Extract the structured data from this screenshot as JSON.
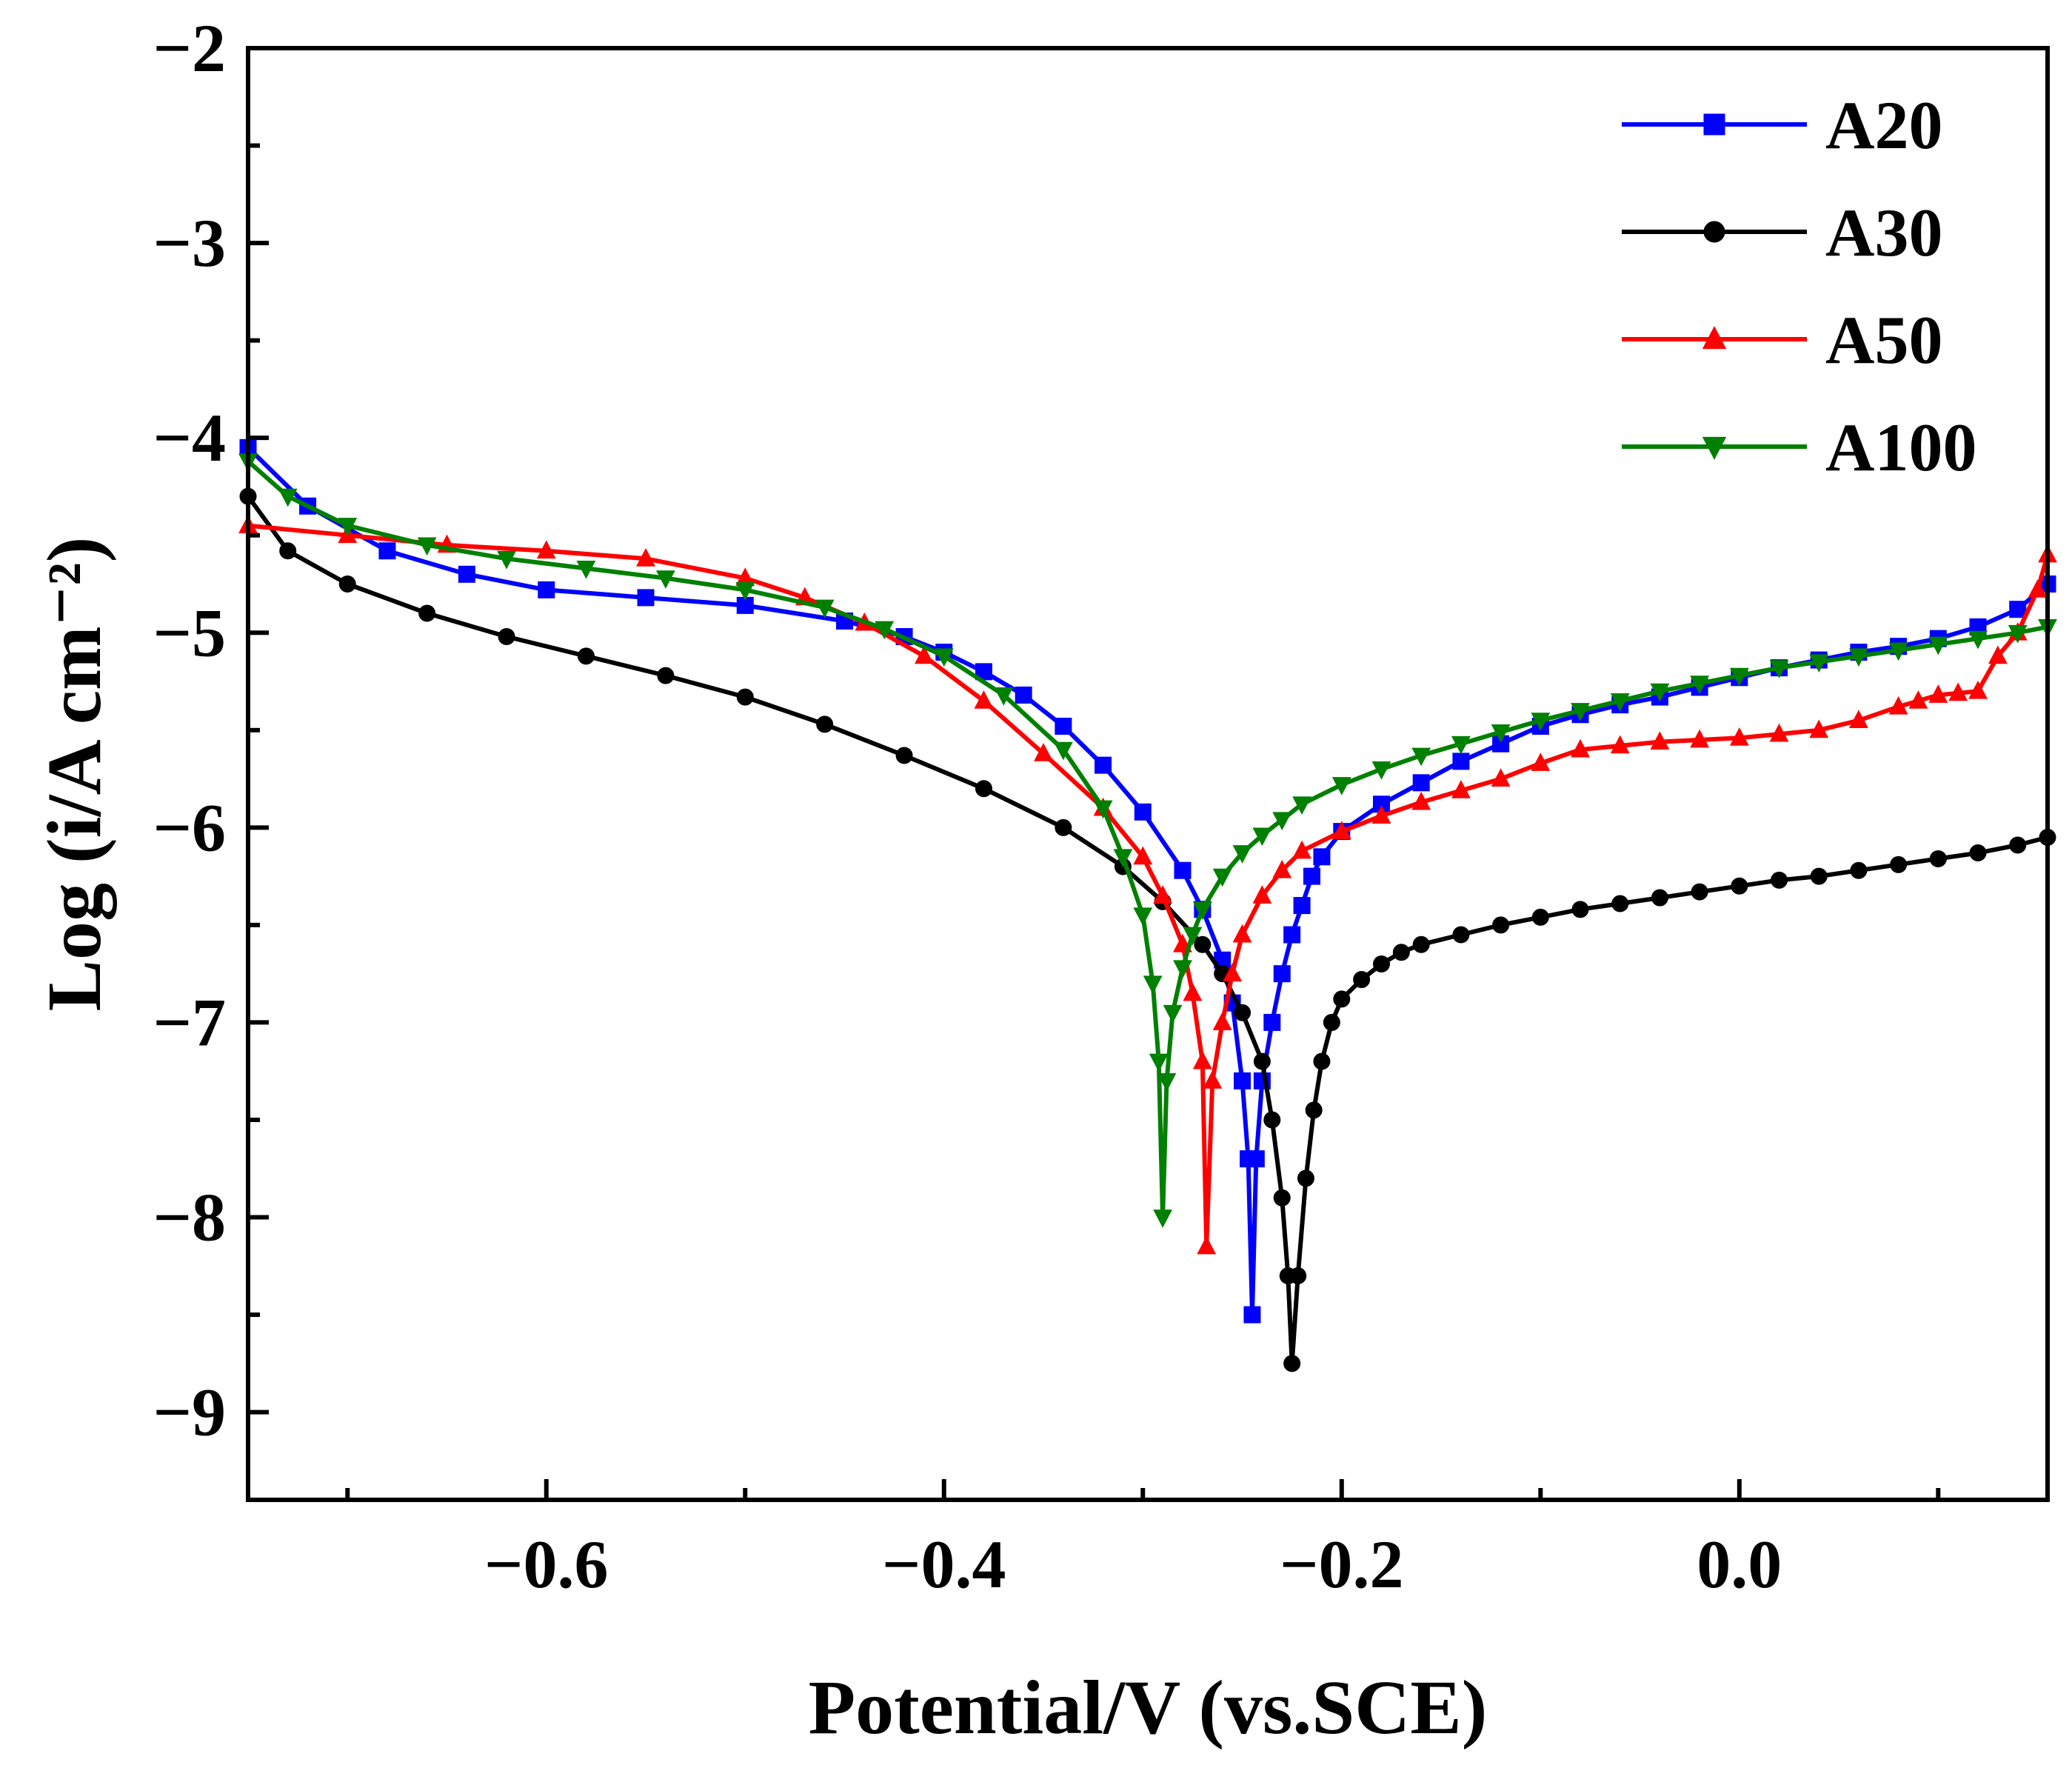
{
  "chart_data": {
    "type": "line",
    "title": "",
    "xlabel": "Potential/V (vs.SCE)",
    "ylabel": "Log (i/A cm⁻²)",
    "xlim": [
      -0.75,
      0.155
    ],
    "ylim": [
      -9.45,
      -2.0
    ],
    "x_ticks": [
      -0.6,
      -0.4,
      -0.2,
      0.0
    ],
    "x_tick_labels": [
      "−0.6",
      "−0.4",
      "−0.2",
      "0.0"
    ],
    "x_minor_ticks": [
      -0.7,
      -0.5,
      -0.3,
      -0.1,
      0.1
    ],
    "y_ticks": [
      -2,
      -3,
      -4,
      -5,
      -6,
      -7,
      -8,
      -9
    ],
    "y_tick_labels": [
      "−2",
      "−3",
      "−4",
      "−5",
      "−6",
      "−7",
      "−8",
      "−9"
    ],
    "y_minor_ticks": [
      -2.5,
      -3.5,
      -4.5,
      -5.5,
      -6.5,
      -7.5,
      -8.5
    ],
    "legend_position": "top-right",
    "grid": false,
    "series": [
      {
        "name": "A20",
        "color": "#0000ff",
        "marker": "square",
        "x": [
          -0.75,
          -0.72,
          -0.68,
          -0.64,
          -0.6,
          -0.55,
          -0.5,
          -0.45,
          -0.42,
          -0.4,
          -0.38,
          -0.36,
          -0.34,
          -0.32,
          -0.3,
          -0.28,
          -0.27,
          -0.26,
          -0.255,
          -0.25,
          -0.247,
          -0.245,
          -0.243,
          -0.24,
          -0.235,
          -0.23,
          -0.225,
          -0.22,
          -0.215,
          -0.21,
          -0.2,
          -0.18,
          -0.16,
          -0.14,
          -0.12,
          -0.1,
          -0.08,
          -0.06,
          -0.04,
          -0.02,
          0.0,
          0.02,
          0.04,
          0.06,
          0.08,
          0.1,
          0.12,
          0.14,
          0.155
        ],
        "y": [
          -4.05,
          -4.35,
          -4.58,
          -4.7,
          -4.78,
          -4.82,
          -4.86,
          -4.94,
          -5.02,
          -5.1,
          -5.2,
          -5.32,
          -5.48,
          -5.68,
          -5.92,
          -6.22,
          -6.42,
          -6.68,
          -6.9,
          -7.3,
          -7.7,
          -8.5,
          -7.7,
          -7.3,
          -7.0,
          -6.75,
          -6.55,
          -6.4,
          -6.25,
          -6.15,
          -6.02,
          -5.88,
          -5.77,
          -5.66,
          -5.57,
          -5.48,
          -5.42,
          -5.37,
          -5.33,
          -5.28,
          -5.23,
          -5.18,
          -5.14,
          -5.1,
          -5.07,
          -5.03,
          -4.97,
          -4.88,
          -4.75
        ]
      },
      {
        "name": "A30",
        "color": "#000000",
        "marker": "circle",
        "x": [
          -0.75,
          -0.73,
          -0.7,
          -0.66,
          -0.62,
          -0.58,
          -0.54,
          -0.5,
          -0.46,
          -0.42,
          -0.38,
          -0.34,
          -0.31,
          -0.29,
          -0.27,
          -0.26,
          -0.25,
          -0.24,
          -0.235,
          -0.23,
          -0.227,
          -0.225,
          -0.222,
          -0.218,
          -0.214,
          -0.21,
          -0.205,
          -0.2,
          -0.19,
          -0.18,
          -0.17,
          -0.16,
          -0.14,
          -0.12,
          -0.1,
          -0.08,
          -0.06,
          -0.04,
          -0.02,
          0.0,
          0.02,
          0.04,
          0.06,
          0.08,
          0.1,
          0.12,
          0.14,
          0.155
        ],
        "y": [
          -4.3,
          -4.58,
          -4.75,
          -4.9,
          -5.02,
          -5.12,
          -5.22,
          -5.33,
          -5.47,
          -5.63,
          -5.8,
          -6.0,
          -6.2,
          -6.38,
          -6.6,
          -6.75,
          -6.95,
          -7.2,
          -7.5,
          -7.9,
          -8.3,
          -8.75,
          -8.3,
          -7.8,
          -7.45,
          -7.2,
          -7.0,
          -6.88,
          -6.78,
          -6.7,
          -6.64,
          -6.6,
          -6.55,
          -6.5,
          -6.46,
          -6.42,
          -6.39,
          -6.36,
          -6.33,
          -6.3,
          -6.27,
          -6.25,
          -6.22,
          -6.19,
          -6.16,
          -6.13,
          -6.09,
          -6.05
        ]
      },
      {
        "name": "A50",
        "color": "#ff0000",
        "marker": "triangle-up",
        "x": [
          -0.75,
          -0.7,
          -0.65,
          -0.6,
          -0.55,
          -0.5,
          -0.47,
          -0.44,
          -0.41,
          -0.38,
          -0.35,
          -0.32,
          -0.3,
          -0.29,
          -0.28,
          -0.275,
          -0.27,
          -0.268,
          -0.265,
          -0.26,
          -0.255,
          -0.25,
          -0.24,
          -0.23,
          -0.22,
          -0.2,
          -0.18,
          -0.16,
          -0.14,
          -0.12,
          -0.1,
          -0.08,
          -0.06,
          -0.04,
          -0.02,
          0.0,
          0.02,
          0.04,
          0.06,
          0.08,
          0.09,
          0.1,
          0.11,
          0.12,
          0.13,
          0.14,
          0.15,
          0.155
        ],
        "y": [
          -4.45,
          -4.5,
          -4.55,
          -4.58,
          -4.62,
          -4.72,
          -4.82,
          -4.95,
          -5.12,
          -5.35,
          -5.62,
          -5.9,
          -6.15,
          -6.35,
          -6.6,
          -6.85,
          -7.2,
          -8.15,
          -7.3,
          -7.0,
          -6.75,
          -6.55,
          -6.35,
          -6.22,
          -6.12,
          -6.02,
          -5.94,
          -5.87,
          -5.81,
          -5.75,
          -5.67,
          -5.6,
          -5.58,
          -5.56,
          -5.55,
          -5.54,
          -5.52,
          -5.5,
          -5.45,
          -5.38,
          -5.35,
          -5.32,
          -5.31,
          -5.3,
          -5.12,
          -5.0,
          -4.78,
          -4.6
        ]
      },
      {
        "name": "A100",
        "color": "#008000",
        "marker": "triangle-down",
        "x": [
          -0.75,
          -0.73,
          -0.7,
          -0.66,
          -0.62,
          -0.58,
          -0.54,
          -0.5,
          -0.46,
          -0.43,
          -0.4,
          -0.37,
          -0.34,
          -0.32,
          -0.31,
          -0.3,
          -0.295,
          -0.292,
          -0.29,
          -0.288,
          -0.285,
          -0.28,
          -0.275,
          -0.27,
          -0.26,
          -0.25,
          -0.24,
          -0.23,
          -0.22,
          -0.2,
          -0.18,
          -0.16,
          -0.14,
          -0.12,
          -0.1,
          -0.08,
          -0.06,
          -0.04,
          -0.02,
          0.0,
          0.02,
          0.04,
          0.06,
          0.08,
          0.1,
          0.12,
          0.14,
          0.155
        ],
        "y": [
          -4.12,
          -4.3,
          -4.45,
          -4.55,
          -4.62,
          -4.67,
          -4.72,
          -4.78,
          -4.87,
          -4.98,
          -5.12,
          -5.32,
          -5.6,
          -5.9,
          -6.15,
          -6.45,
          -6.8,
          -7.2,
          -8.0,
          -7.3,
          -6.95,
          -6.72,
          -6.55,
          -6.42,
          -6.25,
          -6.13,
          -6.04,
          -5.96,
          -5.88,
          -5.78,
          -5.7,
          -5.63,
          -5.57,
          -5.51,
          -5.45,
          -5.4,
          -5.35,
          -5.3,
          -5.26,
          -5.22,
          -5.18,
          -5.15,
          -5.12,
          -5.09,
          -5.06,
          -5.03,
          -5.0,
          -4.97
        ]
      }
    ]
  }
}
